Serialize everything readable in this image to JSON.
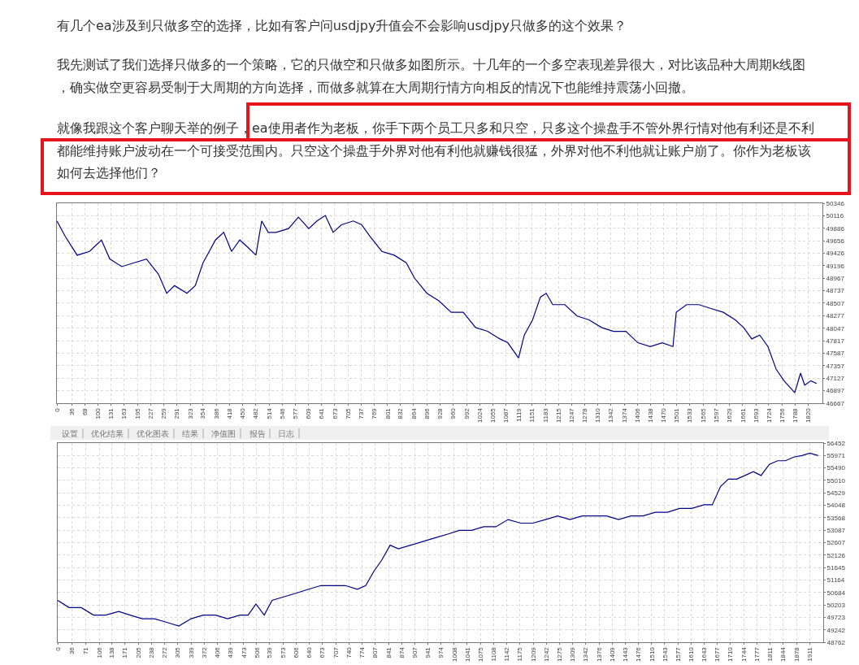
{
  "chart_data": [
    {
      "type": "line",
      "annotations": [
        "有几个ea涉及到只做多空的选择，比如有客户问usdjpy升值会不会影响usdjpy只做多的这个效果？",
        "我先测试了我们选择只做多的一个策略，它的只做空和只做多如图所示。十几年的一个多空表现差异很大，对比该品种大周期k线图，确实做空更容易受制于大周期的方向选择，而做多就算在大周期行情方向相反的情况下也能维持震荡小回撤。",
        "就像我跟这个客户聊天举的例子，ea使用者作为老板，你手下两个员工只多和只空，只多这个操盘手不管外界行情对他有利还是不利都能维持账户波动在一个可接受范围内。只空这个操盘手外界对他有利他就赚钱很猛，外界对他不利他就让账户崩了。你作为老板该如何去选择他们？",
        "设置",
        "优化结果",
        "优化图表",
        "结果",
        "净值图",
        "报告",
        "日志"
      ],
      "x": [
        0,
        20,
        49,
        79,
        108,
        128,
        157,
        187,
        217,
        246,
        266,
        285,
        315,
        335,
        354,
        384,
        404,
        423,
        443,
        463,
        482,
        496,
        512,
        531,
        561,
        585,
        610,
        630,
        650,
        669,
        689,
        718,
        738,
        758,
        787,
        817,
        846,
        866,
        896,
        925,
        955,
        984,
        1014,
        1043,
        1073,
        1092,
        1118,
        1132,
        1152,
        1171,
        1185,
        1201,
        1230,
        1260,
        1289,
        1319,
        1348,
        1378,
        1407,
        1437,
        1466,
        1492,
        1500,
        1525,
        1555,
        1584,
        1614,
        1643,
        1663,
        1683,
        1702,
        1722,
        1742,
        1761,
        1787,
        1801,
        1811,
        1826,
        1840
      ],
      "series": [
        {
          "color": "#00008b",
          "values": [
            50020,
            49740,
            49390,
            49460,
            49670,
            49320,
            49180,
            49250,
            49320,
            49040,
            48690,
            48830,
            48690,
            48830,
            49250,
            49670,
            49810,
            49460,
            49670,
            49530,
            49390,
            50020,
            49810,
            49810,
            49880,
            50090,
            49880,
            50020,
            50120,
            49810,
            49950,
            50020,
            49950,
            49740,
            49460,
            49390,
            49250,
            48970,
            48690,
            48550,
            48340,
            48340,
            48060,
            47990,
            47850,
            47780,
            47500,
            47920,
            48200,
            48620,
            48690,
            48480,
            48480,
            48270,
            48200,
            48060,
            47990,
            47990,
            47780,
            47710,
            47780,
            47710,
            48340,
            48480,
            48480,
            48410,
            48340,
            48200,
            48060,
            47850,
            47920,
            47710,
            47290,
            47080,
            46860,
            47220,
            47000,
            47080,
            47030
          ]
        }
      ],
      "xlim": [
        0,
        1854
      ],
      "xticks": [
        0,
        36,
        68,
        100,
        131,
        163,
        195,
        227,
        259,
        291,
        323,
        354,
        386,
        418,
        450,
        482,
        514,
        546,
        577,
        609,
        641,
        673,
        705,
        737,
        769,
        801,
        832,
        864,
        896,
        928,
        960,
        992,
        1024,
        1055,
        1087,
        1119,
        1151,
        1183,
        1215,
        1247,
        1278,
        1310,
        1342,
        1374,
        1406,
        1438,
        1470,
        1501,
        1533,
        1565,
        1597,
        1629,
        1661,
        1693,
        1724,
        1756,
        1788,
        1820
      ],
      "ylim": [
        46667,
        50346
      ],
      "yticks": [
        46667,
        46897,
        47127,
        47357,
        47587,
        47817,
        48047,
        48277,
        48507,
        48737,
        48967,
        49196,
        49426,
        49656,
        49886,
        50116,
        50346
      ],
      "grid": true,
      "marker": "none",
      "line_style": "solid"
    },
    {
      "type": "line",
      "x": [
        0,
        29,
        60,
        91,
        122,
        155,
        184,
        215,
        246,
        277,
        308,
        339,
        370,
        401,
        432,
        463,
        484,
        504,
        525,
        545,
        576,
        607,
        638,
        669,
        700,
        731,
        762,
        783,
        804,
        824,
        845,
        866,
        897,
        928,
        959,
        990,
        1021,
        1052,
        1083,
        1114,
        1145,
        1177,
        1208,
        1240,
        1271,
        1302,
        1333,
        1364,
        1395,
        1426,
        1457,
        1488,
        1519,
        1550,
        1581,
        1612,
        1643,
        1664,
        1685,
        1705,
        1726,
        1747,
        1768,
        1788,
        1809,
        1830,
        1850,
        1871,
        1892,
        1912,
        1933
      ],
      "series": [
        {
          "color": "#00008b",
          "values": [
            50380,
            50100,
            50100,
            49810,
            49810,
            49950,
            49810,
            49670,
            49670,
            49530,
            49390,
            49670,
            49810,
            49810,
            49670,
            49810,
            49810,
            50240,
            49810,
            50380,
            50520,
            50660,
            50810,
            50950,
            50950,
            50950,
            50810,
            50950,
            51510,
            51940,
            52510,
            52370,
            52510,
            52650,
            52790,
            52930,
            53080,
            53080,
            53220,
            53220,
            53500,
            53360,
            53360,
            53500,
            53640,
            53500,
            53640,
            53640,
            53640,
            53500,
            53640,
            53640,
            53780,
            53780,
            53930,
            53930,
            54070,
            54070,
            54780,
            55060,
            55060,
            55200,
            55350,
            55200,
            55630,
            55770,
            55770,
            55910,
            55970,
            56060,
            55970
          ]
        }
      ],
      "xlim": [
        0,
        1946
      ],
      "xticks": [
        0,
        36,
        71,
        106,
        138,
        171,
        205,
        238,
        272,
        305,
        339,
        372,
        406,
        439,
        473,
        506,
        539,
        573,
        606,
        640,
        673,
        707,
        740,
        774,
        807,
        841,
        874,
        907,
        941,
        974,
        1008,
        1041,
        1075,
        1108,
        1142,
        1175,
        1209,
        1242,
        1275,
        1309,
        1342,
        1376,
        1409,
        1443,
        1476,
        1510,
        1543,
        1577,
        1610,
        1643,
        1677,
        1710,
        1744,
        1777,
        1811,
        1844,
        1878,
        1911
      ],
      "ylim": [
        48762,
        56452
      ],
      "yticks": [
        48762,
        49242,
        49723,
        50203,
        50684,
        51164,
        51645,
        52126,
        52607,
        53087,
        53568,
        54048,
        54529,
        55010,
        55490,
        55971,
        56452
      ],
      "grid": true,
      "marker": "none",
      "line_style": "solid"
    }
  ]
}
